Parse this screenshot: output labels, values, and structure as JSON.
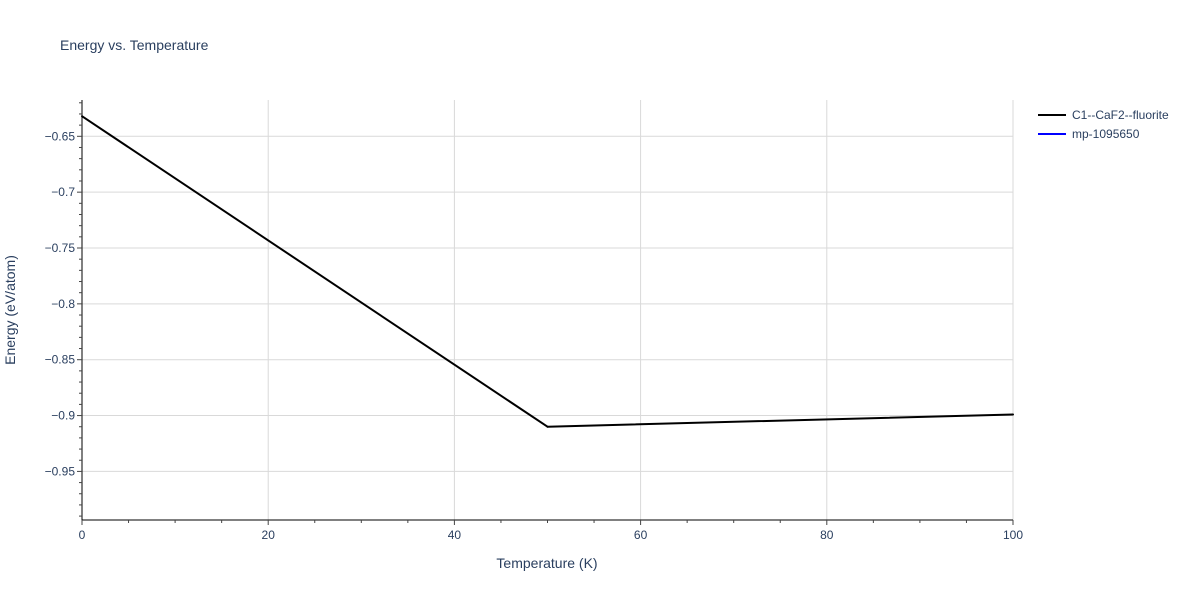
{
  "chart_data": {
    "type": "line",
    "title": "Energy vs. Temperature",
    "xlabel": "Temperature (K)",
    "ylabel": "Energy (eV/atom)",
    "xlim": [
      0,
      100
    ],
    "ylim": [
      -0.9935,
      -0.6175
    ],
    "x_ticks": [
      0,
      20,
      40,
      60,
      80,
      100
    ],
    "x_tick_labels": [
      "0",
      "20",
      "40",
      "60",
      "80",
      "100"
    ],
    "y_ticks": [
      -0.65,
      -0.7,
      -0.75,
      -0.8,
      -0.85,
      -0.9,
      -0.95
    ],
    "y_tick_labels": [
      "−0.65",
      "−0.7",
      "−0.75",
      "−0.8",
      "−0.85",
      "−0.9",
      "−0.95"
    ],
    "grid": true,
    "legend_position": "top-right",
    "series": [
      {
        "name": "C1--CaF2--fluorite",
        "color": "#000000",
        "x": [
          0,
          50,
          100
        ],
        "y": [
          -0.632,
          -0.91,
          -0.899
        ]
      },
      {
        "name": "mp-1095650",
        "color": "#0000ff",
        "x": [],
        "y": []
      }
    ]
  }
}
